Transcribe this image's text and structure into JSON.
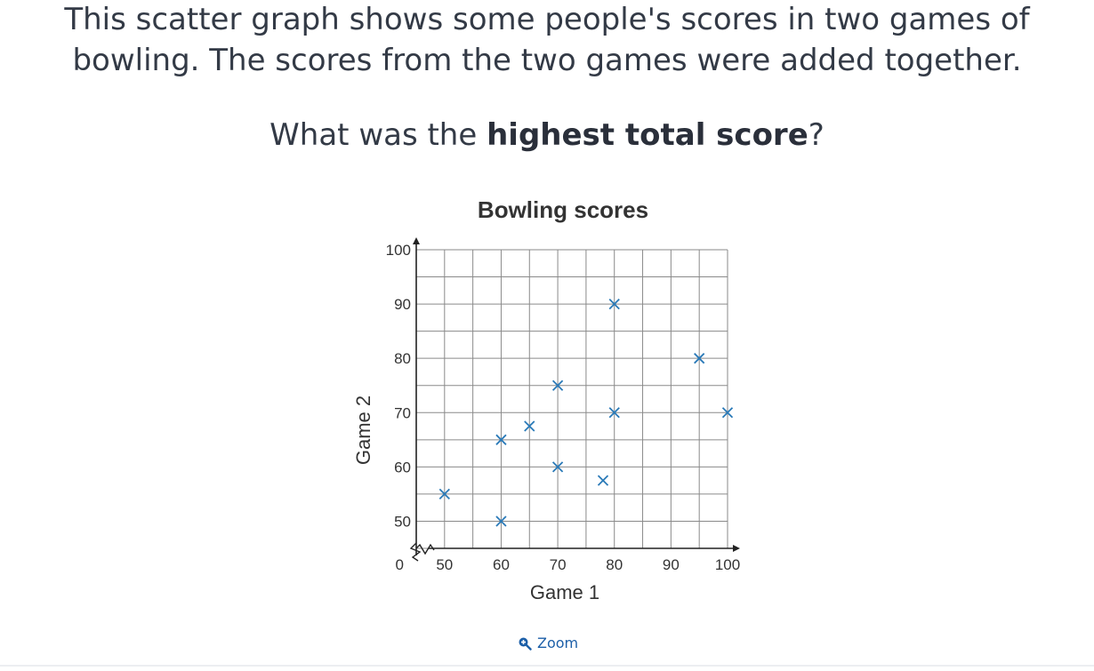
{
  "question": {
    "line1": "This scatter graph shows some people's scores in two games of",
    "line2": "bowling. The scores from the two games were added together.",
    "prompt_before": "What was the ",
    "prompt_bold": "highest total score",
    "prompt_after": "?"
  },
  "zoom": {
    "label": "Zoom",
    "icon": "zoom-in-icon"
  },
  "colors": {
    "marker": "#2a7ab8",
    "grid": "#8a8a8a",
    "text": "#333a46",
    "accent": "#1c5fa8"
  },
  "chart_data": {
    "type": "scatter",
    "title": "Bowling scores",
    "xlabel": "Game 1",
    "ylabel": "Game 2",
    "xlim": [
      45,
      100
    ],
    "ylim": [
      45,
      100
    ],
    "x_ticks": [
      50,
      60,
      70,
      80,
      90,
      100
    ],
    "y_ticks": [
      50,
      60,
      70,
      80,
      90,
      100
    ],
    "origin_label": "0",
    "axis_break": true,
    "grid": true,
    "grid_step": 5,
    "marker": "x",
    "points": [
      {
        "x": 50,
        "y": 55
      },
      {
        "x": 60,
        "y": 50
      },
      {
        "x": 60,
        "y": 65
      },
      {
        "x": 65,
        "y": 67.5
      },
      {
        "x": 70,
        "y": 75
      },
      {
        "x": 70,
        "y": 60
      },
      {
        "x": 78,
        "y": 57.5
      },
      {
        "x": 80,
        "y": 90
      },
      {
        "x": 80,
        "y": 70
      },
      {
        "x": 95,
        "y": 80
      },
      {
        "x": 100,
        "y": 70
      }
    ]
  }
}
